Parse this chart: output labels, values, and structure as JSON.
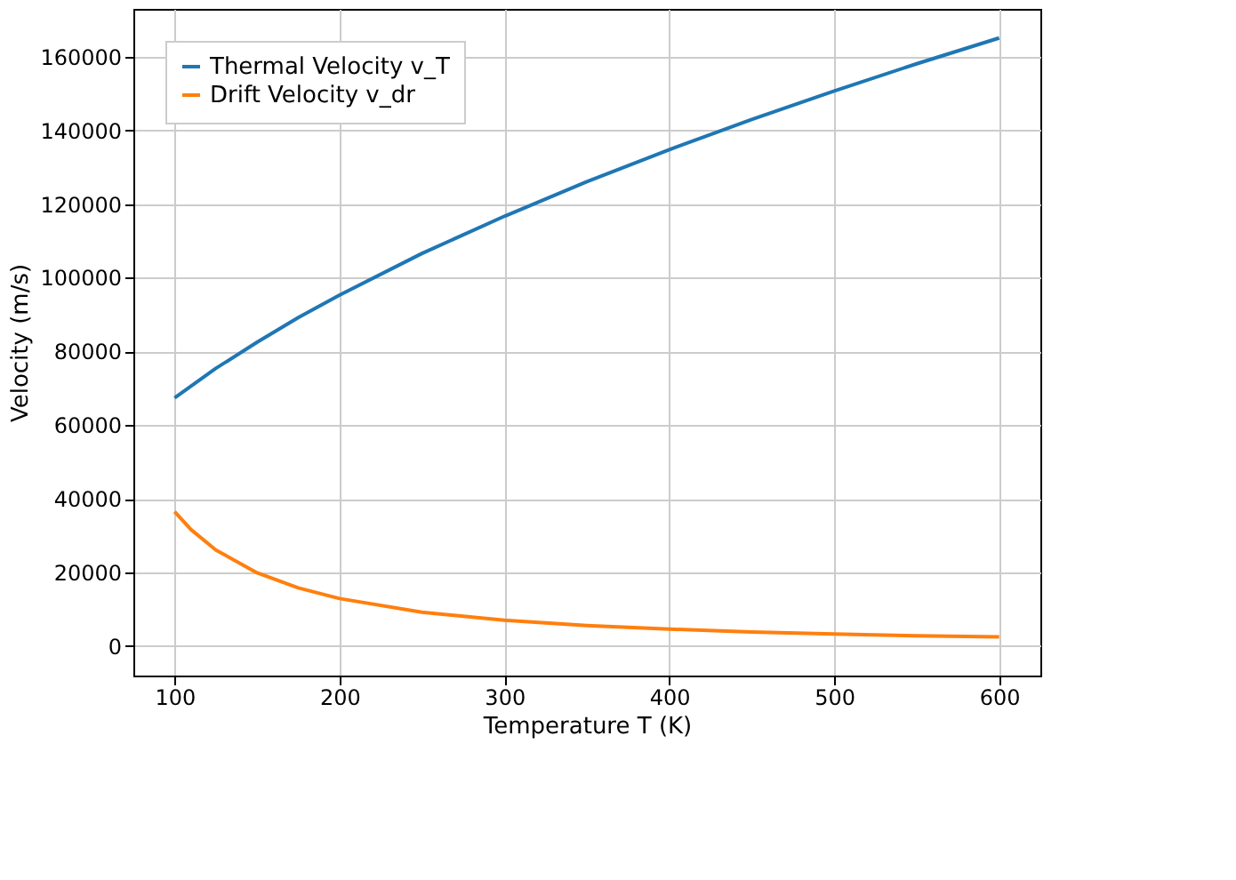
{
  "chart_data": {
    "type": "line",
    "xlabel": "Temperature T (K)",
    "ylabel": "Velocity (m/s)",
    "xlim": [
      75,
      625
    ],
    "xticks": [
      100,
      200,
      300,
      400,
      500,
      600
    ],
    "ylim": [
      -8000,
      173000
    ],
    "yticks": [
      0,
      20000,
      40000,
      60000,
      80000,
      100000,
      120000,
      140000,
      160000
    ],
    "grid": true,
    "legend": "top left",
    "series": [
      {
        "name": "Thermal Velocity v_T",
        "color": "#1f77b4",
        "x": [
          100,
          125,
          150,
          175,
          200,
          250,
          300,
          350,
          400,
          450,
          500,
          550,
          600
        ],
        "values": [
          67400,
          75400,
          82500,
          89200,
          95300,
          106600,
          116700,
          126100,
          134800,
          143000,
          150700,
          158100,
          165100
        ]
      },
      {
        "name": "Drift Velocity v_dr",
        "color": "#ff7f0e",
        "x": [
          100,
          110,
          125,
          150,
          175,
          200,
          250,
          300,
          350,
          400,
          450,
          500,
          550,
          600
        ],
        "values": [
          36500,
          31600,
          26100,
          19900,
          15800,
          12900,
          9200,
          7000,
          5600,
          4600,
          3800,
          3300,
          2800,
          2500
        ]
      }
    ]
  }
}
